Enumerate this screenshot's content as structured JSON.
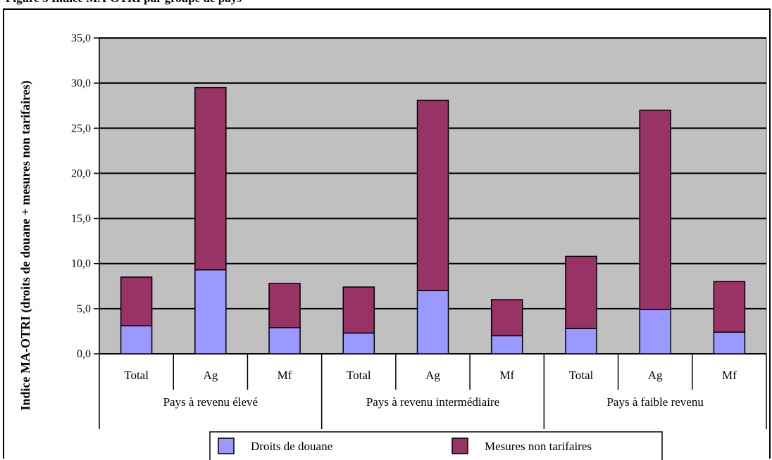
{
  "page_title": "Figure 3 Indice MA-OTRI par groupe de pays",
  "chart_data": {
    "type": "bar",
    "stacked": true,
    "title": "",
    "xlabel": "",
    "ylabel": "Indice MA-OTRI (droits de douane + mesures non tarifaires)",
    "ylim": [
      0,
      35
    ],
    "yticks": [
      "0,0",
      "5,0",
      "10,0",
      "15,0",
      "20,0",
      "25,0",
      "30,0",
      "35,0"
    ],
    "grid": true,
    "legend_position": "bottom-center",
    "groups": [
      "Pays à revenu élevé",
      "Pays à revenu intermédiaire",
      "Pays à faible revenu"
    ],
    "categories": [
      "Total",
      "Ag",
      "Mf",
      "Total",
      "Ag",
      "Mf",
      "Total",
      "Ag",
      "Mf"
    ],
    "series": [
      {
        "name": "Droits de douane",
        "color": "#9999ff",
        "values": [
          3.1,
          9.3,
          2.9,
          2.3,
          7.0,
          2.0,
          2.8,
          4.9,
          2.4
        ]
      },
      {
        "name": "Mesures non tarifaires",
        "color": "#993366",
        "values": [
          5.4,
          20.2,
          4.9,
          5.1,
          21.1,
          4.0,
          8.0,
          22.1,
          5.6
        ]
      }
    ],
    "colors": {
      "plot_background": "#c0c0c0",
      "gridline": "#000000"
    }
  }
}
